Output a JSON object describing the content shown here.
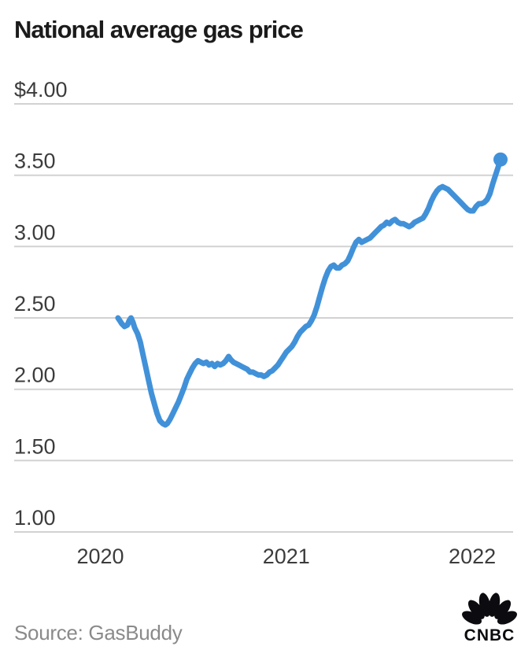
{
  "page": {
    "background": "#ffffff"
  },
  "footer": {
    "source": "Source: GasBuddy",
    "logo_text": "CNBC"
  },
  "chart_data": {
    "type": "line",
    "title": "National average gas price",
    "xlabel": "",
    "ylabel": "",
    "legend": "none",
    "grid": "horizontal gridlines only",
    "x_axis": {
      "tick_values": [
        2020,
        2021,
        2022
      ],
      "tick_labels": [
        "2020",
        "2021",
        "2022"
      ],
      "range": [
        2019.54,
        2022.22
      ]
    },
    "y_axis": {
      "tick_values": [
        4.0,
        3.5,
        3.0,
        2.5,
        2.0,
        1.5,
        1.0
      ],
      "tick_labels": [
        "$4.00",
        "3.50",
        "3.00",
        "2.50",
        "2.00",
        "1.50",
        "1.00"
      ],
      "range": [
        1.0,
        4.0
      ]
    },
    "colors": {
      "line": "#4191d9",
      "gridline": "#d2d2d2",
      "axis_label": "#3c3c3c",
      "title": "#1b1b1b",
      "source_text": "#8a8a8a",
      "logo": "#0c0c10",
      "background": "#ffffff"
    },
    "series": [
      {
        "name": "National average gas price",
        "unit": "$ per gallon",
        "color": "#4191d9",
        "end_dot": true,
        "points": [
          [
            2020.095,
            2.5
          ],
          [
            2020.105,
            2.48
          ],
          [
            2020.115,
            2.46
          ],
          [
            2020.13,
            2.44
          ],
          [
            2020.145,
            2.45
          ],
          [
            2020.155,
            2.48
          ],
          [
            2020.165,
            2.5
          ],
          [
            2020.175,
            2.47
          ],
          [
            2020.185,
            2.43
          ],
          [
            2020.2,
            2.39
          ],
          [
            2020.215,
            2.33
          ],
          [
            2020.23,
            2.24
          ],
          [
            2020.245,
            2.15
          ],
          [
            2020.26,
            2.06
          ],
          [
            2020.275,
            1.97
          ],
          [
            2020.29,
            1.9
          ],
          [
            2020.305,
            1.83
          ],
          [
            2020.32,
            1.78
          ],
          [
            2020.335,
            1.76
          ],
          [
            2020.35,
            1.75
          ],
          [
            2020.36,
            1.76
          ],
          [
            2020.375,
            1.79
          ],
          [
            2020.39,
            1.83
          ],
          [
            2020.405,
            1.87
          ],
          [
            2020.42,
            1.91
          ],
          [
            2020.435,
            1.96
          ],
          [
            2020.45,
            2.01
          ],
          [
            2020.465,
            2.07
          ],
          [
            2020.48,
            2.11
          ],
          [
            2020.495,
            2.15
          ],
          [
            2020.51,
            2.18
          ],
          [
            2020.525,
            2.2
          ],
          [
            2020.54,
            2.19
          ],
          [
            2020.555,
            2.18
          ],
          [
            2020.57,
            2.19
          ],
          [
            2020.585,
            2.17
          ],
          [
            2020.6,
            2.18
          ],
          [
            2020.615,
            2.16
          ],
          [
            2020.63,
            2.18
          ],
          [
            2020.645,
            2.17
          ],
          [
            2020.66,
            2.18
          ],
          [
            2020.675,
            2.2
          ],
          [
            2020.69,
            2.23
          ],
          [
            2020.7,
            2.21
          ],
          [
            2020.715,
            2.19
          ],
          [
            2020.73,
            2.18
          ],
          [
            2020.745,
            2.17
          ],
          [
            2020.76,
            2.16
          ],
          [
            2020.775,
            2.15
          ],
          [
            2020.79,
            2.14
          ],
          [
            2020.805,
            2.12
          ],
          [
            2020.82,
            2.12
          ],
          [
            2020.835,
            2.11
          ],
          [
            2020.85,
            2.1
          ],
          [
            2020.865,
            2.1
          ],
          [
            2020.88,
            2.09
          ],
          [
            2020.895,
            2.1
          ],
          [
            2020.91,
            2.12
          ],
          [
            2020.925,
            2.13
          ],
          [
            2020.94,
            2.15
          ],
          [
            2020.955,
            2.17
          ],
          [
            2020.97,
            2.2
          ],
          [
            2020.985,
            2.23
          ],
          [
            2021.0,
            2.26
          ],
          [
            2021.015,
            2.28
          ],
          [
            2021.03,
            2.3
          ],
          [
            2021.045,
            2.33
          ],
          [
            2021.06,
            2.37
          ],
          [
            2021.075,
            2.4
          ],
          [
            2021.09,
            2.42
          ],
          [
            2021.105,
            2.44
          ],
          [
            2021.12,
            2.45
          ],
          [
            2021.135,
            2.48
          ],
          [
            2021.15,
            2.52
          ],
          [
            2021.165,
            2.58
          ],
          [
            2021.18,
            2.65
          ],
          [
            2021.195,
            2.72
          ],
          [
            2021.21,
            2.78
          ],
          [
            2021.225,
            2.83
          ],
          [
            2021.24,
            2.86
          ],
          [
            2021.255,
            2.87
          ],
          [
            2021.27,
            2.85
          ],
          [
            2021.285,
            2.85
          ],
          [
            2021.3,
            2.87
          ],
          [
            2021.315,
            2.88
          ],
          [
            2021.33,
            2.9
          ],
          [
            2021.345,
            2.94
          ],
          [
            2021.36,
            2.99
          ],
          [
            2021.375,
            3.03
          ],
          [
            2021.39,
            3.05
          ],
          [
            2021.405,
            3.03
          ],
          [
            2021.42,
            3.04
          ],
          [
            2021.435,
            3.05
          ],
          [
            2021.45,
            3.06
          ],
          [
            2021.465,
            3.08
          ],
          [
            2021.48,
            3.1
          ],
          [
            2021.495,
            3.12
          ],
          [
            2021.51,
            3.14
          ],
          [
            2021.525,
            3.15
          ],
          [
            2021.54,
            3.17
          ],
          [
            2021.555,
            3.16
          ],
          [
            2021.57,
            3.18
          ],
          [
            2021.585,
            3.19
          ],
          [
            2021.6,
            3.17
          ],
          [
            2021.615,
            3.16
          ],
          [
            2021.63,
            3.16
          ],
          [
            2021.645,
            3.15
          ],
          [
            2021.66,
            3.14
          ],
          [
            2021.675,
            3.15
          ],
          [
            2021.69,
            3.17
          ],
          [
            2021.705,
            3.18
          ],
          [
            2021.72,
            3.19
          ],
          [
            2021.735,
            3.2
          ],
          [
            2021.75,
            3.23
          ],
          [
            2021.765,
            3.27
          ],
          [
            2021.78,
            3.32
          ],
          [
            2021.795,
            3.36
          ],
          [
            2021.81,
            3.39
          ],
          [
            2021.825,
            3.41
          ],
          [
            2021.84,
            3.42
          ],
          [
            2021.855,
            3.41
          ],
          [
            2021.87,
            3.4
          ],
          [
            2021.885,
            3.38
          ],
          [
            2021.9,
            3.36
          ],
          [
            2021.915,
            3.34
          ],
          [
            2021.93,
            3.32
          ],
          [
            2021.945,
            3.3
          ],
          [
            2021.96,
            3.28
          ],
          [
            2021.975,
            3.26
          ],
          [
            2021.99,
            3.25
          ],
          [
            2022.005,
            3.25
          ],
          [
            2022.02,
            3.28
          ],
          [
            2022.035,
            3.3
          ],
          [
            2022.05,
            3.3
          ],
          [
            2022.065,
            3.31
          ],
          [
            2022.08,
            3.33
          ],
          [
            2022.095,
            3.37
          ],
          [
            2022.11,
            3.44
          ],
          [
            2022.125,
            3.5
          ],
          [
            2022.14,
            3.56
          ],
          [
            2022.152,
            3.61
          ]
        ]
      }
    ]
  }
}
